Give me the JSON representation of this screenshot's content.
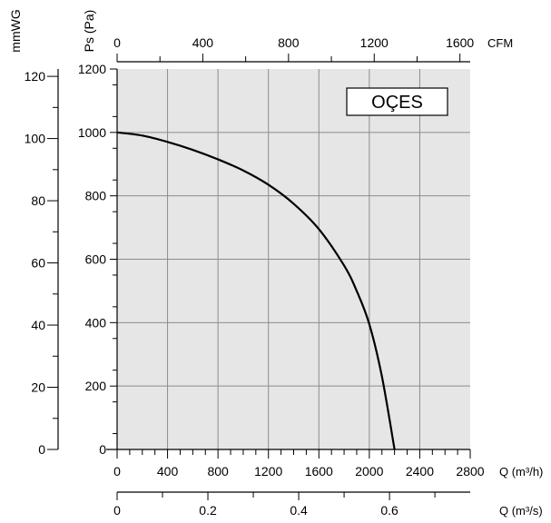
{
  "chart_data": {
    "type": "line",
    "title": "",
    "legend_box": "OÇES",
    "grid": true,
    "series": [
      {
        "x": [
          0,
          200,
          400,
          600,
          800,
          1000,
          1200,
          1400,
          1600,
          1800,
          1900,
          2000,
          2100,
          2200
        ],
        "y": [
          1000,
          990,
          970,
          945,
          915,
          880,
          835,
          775,
          695,
          580,
          500,
          395,
          230,
          0
        ]
      }
    ],
    "axes": {
      "q_m3h": {
        "label": "Q (m³/h)",
        "ticks": [
          "0",
          "400",
          "800",
          "1200",
          "1600",
          "2000",
          "2400",
          "2800"
        ],
        "range": [
          0,
          2800
        ]
      },
      "q_m3s": {
        "label": "Q (m³/s)",
        "ticks": [
          "0",
          "0.2",
          "0.4",
          "0.6"
        ],
        "range": [
          0,
          0.7778
        ]
      },
      "cfm": {
        "label": "CFM",
        "ticks": [
          "0",
          "400",
          "800",
          "1200",
          "1600"
        ],
        "range": [
          0,
          1648
        ]
      },
      "ps_pa": {
        "label": "Ps (Pa)",
        "ticks": [
          "0",
          "200",
          "400",
          "600",
          "800",
          "1000",
          "1200"
        ],
        "range": [
          0,
          1200
        ]
      },
      "mmwg": {
        "label": "mmWG",
        "ticks": [
          "0",
          "20",
          "40",
          "60",
          "80",
          "100",
          "120"
        ],
        "range": [
          0,
          122.4
        ]
      }
    }
  }
}
